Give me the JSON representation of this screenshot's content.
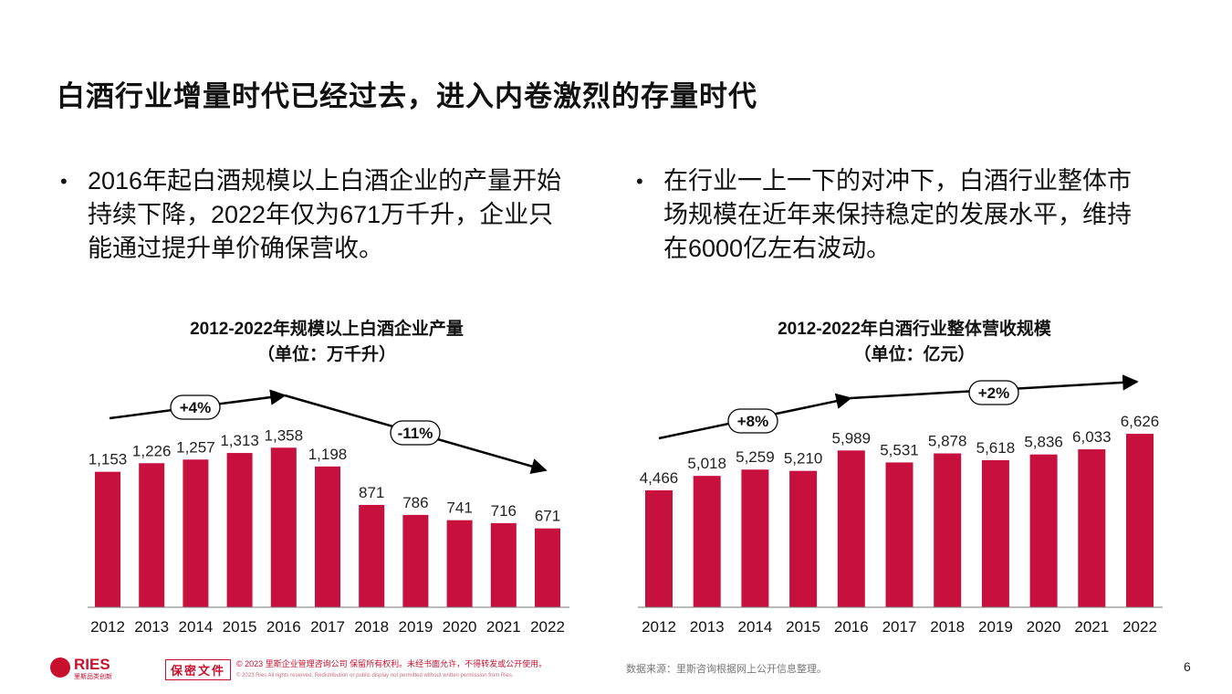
{
  "title": "白酒行业增量时代已经过去，进入内卷激烈的存量时代",
  "bullets": {
    "left": {
      "dot": "•",
      "lines": [
        "2016年起白酒规模以上白酒企业的产量开始",
        "持续下降，2022年仅为671万千升，企业只",
        "能通过提升单价确保营收。"
      ]
    },
    "right": {
      "dot": "•",
      "lines": [
        "在行业一上一下的对冲下，白酒行业整体市",
        "场规模在近年来保持稳定的发展水平，维持",
        "在6000亿左右波动。"
      ]
    }
  },
  "colors": {
    "bar": "#c8103e",
    "accent": "#c8102e",
    "arrow": "#000000"
  },
  "chart_data": [
    {
      "type": "bar",
      "title": "2012-2022年规模以上白酒企业产量",
      "subtitle": "（单位：万千升）",
      "categories": [
        "2012",
        "2013",
        "2014",
        "2015",
        "2016",
        "2017",
        "2018",
        "2019",
        "2020",
        "2021",
        "2022"
      ],
      "values": [
        1153,
        1226,
        1257,
        1313,
        1358,
        1198,
        871,
        786,
        741,
        716,
        671
      ],
      "data_labels": [
        "1,153",
        "1,226",
        "1,257",
        "1,313",
        "1,358",
        "1,198",
        "871",
        "786",
        "741",
        "716",
        "671"
      ],
      "annotations": [
        {
          "label": "+4%",
          "from_category": "2012",
          "to_category": "2016"
        },
        {
          "label": "-11%",
          "from_category": "2016",
          "to_category": "2022"
        }
      ],
      "ylim": [
        0,
        1500
      ],
      "grid": false,
      "legend": "none"
    },
    {
      "type": "bar",
      "title": "2012-2022年白酒行业整体营收规模",
      "subtitle": "（单位：亿元）",
      "categories": [
        "2012",
        "2013",
        "2014",
        "2015",
        "2016",
        "2017",
        "2018",
        "2019",
        "2020",
        "2021",
        "2022"
      ],
      "values": [
        4466,
        5018,
        5259,
        5210,
        5989,
        5531,
        5878,
        5618,
        5836,
        6033,
        6626
      ],
      "data_labels": [
        "4,466",
        "5,018",
        "5,259",
        "5,210",
        "5,989",
        "5,531",
        "5,878",
        "5,618",
        "5,836",
        "6,033",
        "6,626"
      ],
      "annotations": [
        {
          "label": "+8%",
          "from_category": "2012",
          "to_category": "2016"
        },
        {
          "label": "+2%",
          "from_category": "2016",
          "to_category": "2022"
        }
      ],
      "ylim": [
        0,
        7500
      ],
      "grid": false,
      "legend": "none"
    }
  ],
  "footer": {
    "logo_text": "RIES",
    "logo_sub": "里斯品类创新",
    "confidential": "保密文件",
    "copyright_cn": "© 2023 里斯企业管理咨询公司 保留所有权利。未经书面允许，不得转发或公开使用。",
    "copyright_en": "© 2023 Ries All rights reserved. Redistribution or public display not permitted without written permission from Ries.",
    "source": "数据来源：里斯咨询根据网上公开信息整理。",
    "page": "6"
  }
}
